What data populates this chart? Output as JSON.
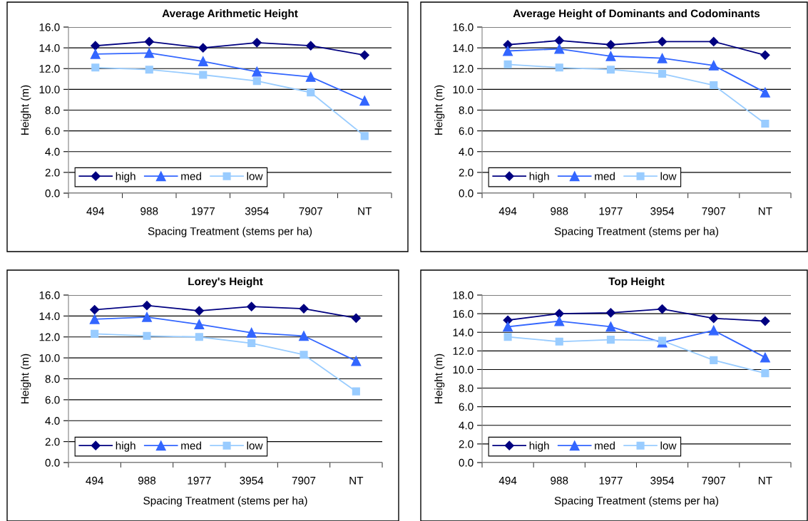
{
  "chart_data": [
    {
      "type": "line",
      "title": "Average Arithmetic Height",
      "xlabel": "Spacing Treatment (stems per ha)",
      "ylabel": "Height (m)",
      "categories": [
        "494",
        "988",
        "1977",
        "3954",
        "7907",
        "NT"
      ],
      "ylim": [
        0,
        16
      ],
      "yticks": [
        {
          "value": 0,
          "label": "0.0"
        },
        {
          "value": 2,
          "label": "2.0"
        },
        {
          "value": 4,
          "label": "4.0"
        },
        {
          "value": 6,
          "label": "6.0"
        },
        {
          "value": 8,
          "label": "8.0"
        },
        {
          "value": 10,
          "label": "10.0"
        },
        {
          "value": 12,
          "label": "12.0"
        },
        {
          "value": 14,
          "label": "14.0"
        },
        {
          "value": 16,
          "label": "16.0"
        }
      ],
      "grid": "y",
      "legend": "bottom left",
      "series": [
        {
          "name": "high",
          "color": "#000080",
          "marker": "diamond",
          "values": [
            14.2,
            14.6,
            14.0,
            14.5,
            14.2,
            13.3
          ]
        },
        {
          "name": "med",
          "color": "#3366ff",
          "marker": "triangle",
          "values": [
            13.4,
            13.5,
            12.7,
            11.7,
            11.2,
            8.9
          ]
        },
        {
          "name": "low",
          "color": "#99ccff",
          "marker": "square",
          "values": [
            12.1,
            11.9,
            11.4,
            10.8,
            9.7,
            5.5
          ]
        }
      ]
    },
    {
      "type": "line",
      "title": "Average Height of Dominants and Codominants",
      "xlabel": "Spacing Treatment (stems per ha)",
      "ylabel": "Height (m)",
      "categories": [
        "494",
        "988",
        "1977",
        "3954",
        "7907",
        "NT"
      ],
      "ylim": [
        0,
        16
      ],
      "yticks": [
        {
          "value": 0,
          "label": "0.0"
        },
        {
          "value": 2,
          "label": "2.0"
        },
        {
          "value": 4,
          "label": "4.0"
        },
        {
          "value": 6,
          "label": "6.0"
        },
        {
          "value": 8,
          "label": "8.0"
        },
        {
          "value": 10,
          "label": "10.0"
        },
        {
          "value": 12,
          "label": "12.0"
        },
        {
          "value": 14,
          "label": "14.0"
        },
        {
          "value": 16,
          "label": "16.0"
        }
      ],
      "grid": "y",
      "legend": "bottom left",
      "series": [
        {
          "name": "high",
          "color": "#000080",
          "marker": "diamond",
          "values": [
            14.3,
            14.7,
            14.3,
            14.6,
            14.6,
            13.3
          ]
        },
        {
          "name": "med",
          "color": "#3366ff",
          "marker": "triangle",
          "values": [
            13.7,
            13.9,
            13.2,
            13.0,
            12.3,
            9.7
          ]
        },
        {
          "name": "low",
          "color": "#99ccff",
          "marker": "square",
          "values": [
            12.4,
            12.1,
            11.9,
            11.5,
            10.4,
            6.7
          ]
        }
      ]
    },
    {
      "type": "line",
      "title": "Lorey's Height",
      "xlabel": "Spacing Treatment (stems per ha)",
      "ylabel": "Height (m)",
      "categories": [
        "494",
        "988",
        "1977",
        "3954",
        "7907",
        "NT"
      ],
      "ylim": [
        0,
        16
      ],
      "yticks": [
        {
          "value": 0,
          "label": "0.0"
        },
        {
          "value": 2,
          "label": "2.0"
        },
        {
          "value": 4,
          "label": "4.0"
        },
        {
          "value": 6,
          "label": "6.0"
        },
        {
          "value": 8,
          "label": "8.0"
        },
        {
          "value": 10,
          "label": "10.0"
        },
        {
          "value": 12,
          "label": "12.0"
        },
        {
          "value": 14,
          "label": "14.0"
        },
        {
          "value": 16,
          "label": "16.0"
        }
      ],
      "grid": "y",
      "legend": "bottom left",
      "series": [
        {
          "name": "high",
          "color": "#000080",
          "marker": "diamond",
          "values": [
            14.6,
            15.0,
            14.5,
            14.9,
            14.7,
            13.8
          ]
        },
        {
          "name": "med",
          "color": "#3366ff",
          "marker": "triangle",
          "values": [
            13.7,
            13.9,
            13.2,
            12.4,
            12.1,
            9.7
          ]
        },
        {
          "name": "low",
          "color": "#99ccff",
          "marker": "square",
          "values": [
            12.3,
            12.1,
            12.0,
            11.4,
            10.3,
            6.8
          ]
        }
      ]
    },
    {
      "type": "line",
      "title": "Top Height",
      "xlabel": "Spacing Treatment (stems per ha)",
      "ylabel": "Height (m)",
      "categories": [
        "494",
        "988",
        "1977",
        "3954",
        "7907",
        "NT"
      ],
      "ylim": [
        0,
        18
      ],
      "yticks": [
        {
          "value": 0,
          "label": "0.0"
        },
        {
          "value": 2,
          "label": "2.0"
        },
        {
          "value": 4,
          "label": "4.0"
        },
        {
          "value": 6,
          "label": "6.0"
        },
        {
          "value": 8,
          "label": "8.0"
        },
        {
          "value": 10,
          "label": "10.0"
        },
        {
          "value": 12,
          "label": "12.0"
        },
        {
          "value": 14,
          "label": "14.0"
        },
        {
          "value": 16,
          "label": "16.0"
        },
        {
          "value": 18,
          "label": "18.0"
        }
      ],
      "grid": "y",
      "legend": "bottom left",
      "series": [
        {
          "name": "high",
          "color": "#000080",
          "marker": "diamond",
          "values": [
            15.3,
            16.0,
            16.1,
            16.5,
            15.5,
            15.2
          ]
        },
        {
          "name": "med",
          "color": "#3366ff",
          "marker": "triangle",
          "values": [
            14.6,
            15.2,
            14.6,
            12.9,
            14.2,
            11.3
          ]
        },
        {
          "name": "low",
          "color": "#99ccff",
          "marker": "square",
          "values": [
            13.5,
            13.0,
            13.2,
            13.1,
            11.0,
            9.6
          ]
        }
      ]
    }
  ]
}
